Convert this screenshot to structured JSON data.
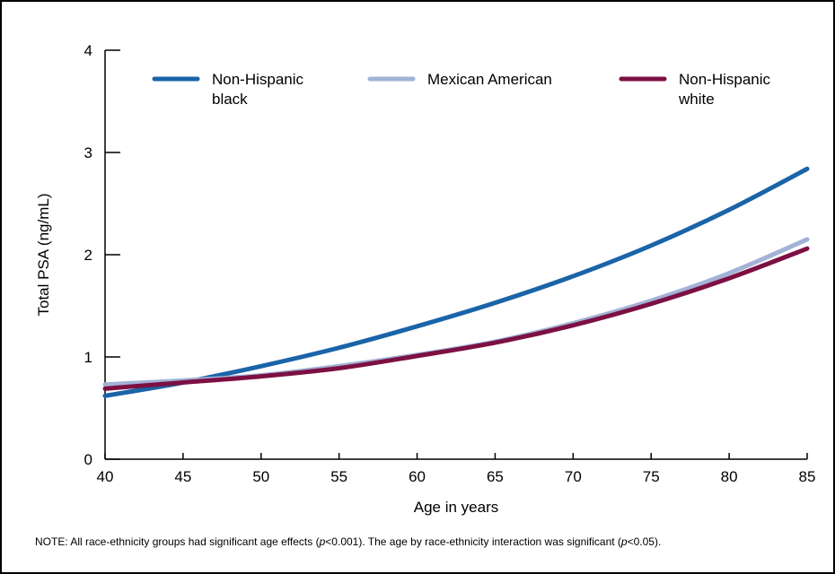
{
  "chart_data": {
    "type": "line",
    "title": "",
    "xlabel": "Age in years",
    "ylabel": "Total PSA (ng/mL)",
    "xlim": [
      40,
      85
    ],
    "ylim": [
      0,
      4
    ],
    "x_ticks": [
      "40",
      "45",
      "50",
      "55",
      "60",
      "65",
      "70",
      "75",
      "80",
      "85"
    ],
    "y_ticks": [
      "0",
      "1",
      "2",
      "3",
      "4"
    ],
    "grid": false,
    "legend_position": "top",
    "x": [
      40,
      45,
      50,
      55,
      60,
      65,
      70,
      75,
      80,
      85
    ],
    "series": [
      {
        "name": "Non-Hispanic black",
        "name_lines": [
          "Non-Hispanic",
          "black"
        ],
        "color": "#1a64a8",
        "values": [
          0.62,
          0.75,
          0.91,
          1.09,
          1.3,
          1.53,
          1.79,
          2.09,
          2.44,
          2.84
        ]
      },
      {
        "name": "Mexican American",
        "name_lines": [
          "Mexican American"
        ],
        "color": "#a3b2d6",
        "values": [
          0.73,
          0.77,
          0.82,
          0.91,
          1.02,
          1.15,
          1.33,
          1.55,
          1.82,
          2.15
        ]
      },
      {
        "name": "Non-Hispanic white",
        "name_lines": [
          "Non-Hispanic",
          "white"
        ],
        "color": "#7d1043",
        "values": [
          0.69,
          0.75,
          0.81,
          0.89,
          1.01,
          1.14,
          1.31,
          1.52,
          1.77,
          2.06
        ]
      }
    ]
  },
  "note": {
    "prefix": "NOTE:  All race-ethnicity groups had significant age effects (",
    "p1_symbol": "p",
    "p1_value": "<0.001).  The age by race-ethnicity interaction was significant (",
    "p2_symbol": "p",
    "p2_value": "<0.05)."
  }
}
